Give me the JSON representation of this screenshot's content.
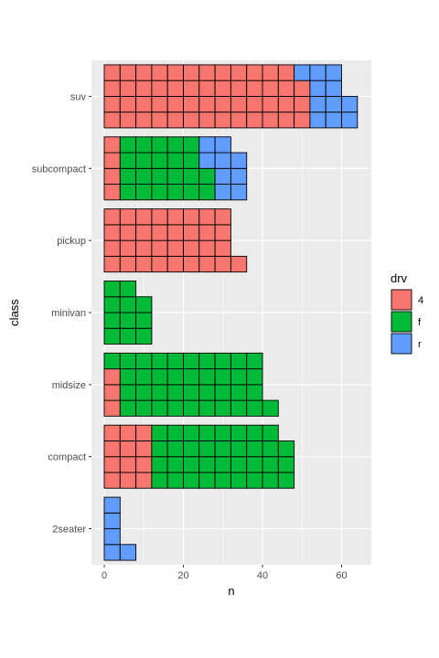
{
  "chart_data": {
    "type": "bar",
    "orientation": "horizontal",
    "style": "waffle-tiles",
    "tile_value": 4,
    "tiles_per_column": 4,
    "xlabel": "n",
    "ylabel": "class",
    "xlim": [
      0,
      66
    ],
    "x_ticks": [
      "0",
      "20",
      "40",
      "60"
    ],
    "grid": true,
    "legend": {
      "title": "drv",
      "position": "right"
    },
    "categories": [
      "2seater",
      "compact",
      "midsize",
      "minivan",
      "pickup",
      "subcompact",
      "suv"
    ],
    "series": [
      {
        "name": "4",
        "color": "#F8766D",
        "values": [
          0,
          12,
          3,
          0,
          33,
          4,
          51
        ]
      },
      {
        "name": "f",
        "color": "#00BA38",
        "values": [
          0,
          35,
          38,
          11,
          0,
          22,
          0
        ]
      },
      {
        "name": "r",
        "color": "#619CFF",
        "values": [
          5,
          0,
          0,
          0,
          0,
          9,
          11
        ]
      }
    ]
  }
}
